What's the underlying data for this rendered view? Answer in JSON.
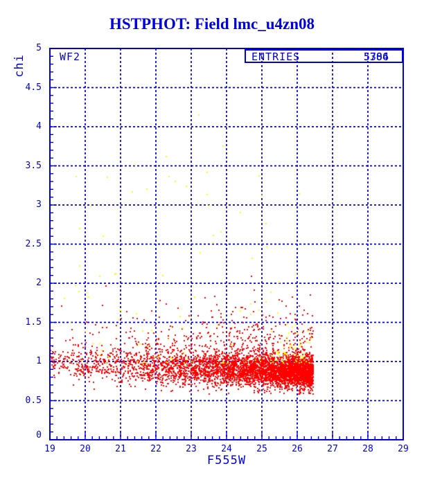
{
  "title": "HSTPHOT: Field lmc_u4zn08",
  "colors": {
    "accent_blue": "#0000dd",
    "title_blue": "#0000d8",
    "red_points": "#ff0000",
    "yellow_points": "#ffff00",
    "background": "#ffffff"
  },
  "chart_data": {
    "type": "scatter",
    "title": "HSTPHOT: Field lmc_u4zn08",
    "xlabel": "F555W",
    "ylabel": "chi",
    "xlim": [
      19,
      29
    ],
    "ylim": [
      0,
      5
    ],
    "x_ticks": {
      "labels": [
        "19",
        "20",
        "21",
        "22",
        "23",
        "24",
        "25",
        "26",
        "27",
        "28",
        "29"
      ],
      "values": [
        19,
        20,
        21,
        22,
        23,
        24,
        25,
        26,
        27,
        28,
        29
      ]
    },
    "y_ticks": {
      "labels": [
        "0",
        "0.5",
        "1",
        "1.5",
        "2",
        "2.5",
        "3",
        "3.5",
        "4",
        "4.5",
        "5"
      ],
      "values": [
        0,
        0.5,
        1,
        1.5,
        2,
        2.5,
        3,
        3.5,
        4,
        4.5,
        5
      ]
    },
    "x_minor_step": 0.2,
    "y_minor_step": 0.1,
    "grid": {
      "style": "dashed",
      "at": "major-ticks",
      "color": "#0000dd"
    },
    "annotations": {
      "detector_label": "WF2",
      "stats_box": {
        "label": "ENTRIES",
        "values": [
          "5384",
          "5706"
        ]
      }
    },
    "seed": 20240917,
    "series": [
      {
        "name": "star-detections-chi",
        "color": "#ff0000",
        "marker_px": 2,
        "count": 4800,
        "x_model": {
          "kind": "exp",
          "range": [
            19,
            26.45
          ],
          "k": 0.4
        },
        "chi_model": {
          "center_at_x19": 0.97,
          "center_slope": -0.015,
          "sigma_core": 0.105,
          "tail_frac_bright": 0.17,
          "tail_frac_faint": 0.07,
          "tail_scale": 0.34,
          "min": 0.58,
          "max": 2.35
        }
      },
      {
        "name": "flagged-detections-chi",
        "color": "#ffff00",
        "marker_px": 2,
        "count": 95,
        "x_model": {
          "kind": "uniform",
          "range": [
            19.4,
            26.45
          ]
        },
        "chi_model": {
          "kind": "power",
          "base": 0.98,
          "amp": 2.5,
          "exp": 2.4
        },
        "cluster": {
          "count": 45,
          "x_range": [
            25.2,
            26.45
          ],
          "chi_base": 0.98,
          "chi_sigma": 0.22,
          "chi_max": 1.5
        },
        "explicit_points": [
          [
            23.22,
            4.15
          ],
          [
            19.75,
            3.36
          ],
          [
            21.4,
            3.51
          ],
          [
            21.75,
            3.2
          ],
          [
            25.0,
            3.12
          ],
          [
            22.55,
            3.3
          ],
          [
            23.45,
            3.42
          ],
          [
            20.15,
            2.98
          ],
          [
            23.9,
            3.75
          ],
          [
            22.3,
            3.62
          ],
          [
            24.4,
            2.9
          ],
          [
            20.5,
            2.6
          ]
        ]
      }
    ]
  }
}
